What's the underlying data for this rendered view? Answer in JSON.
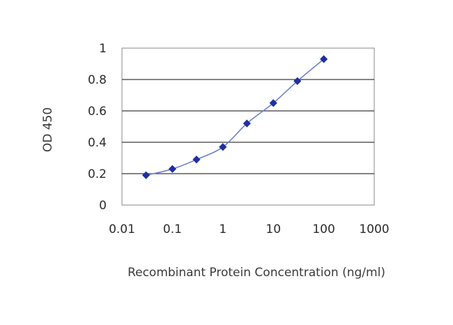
{
  "chart_data": {
    "type": "line",
    "xscale": "log",
    "xlabel": "Recombinant Protein Concentration (ng/ml)",
    "ylabel": "OD 450",
    "xlim": [
      0.01,
      1000
    ],
    "ylim": [
      0,
      1
    ],
    "x_ticks": [
      0.01,
      0.1,
      1,
      10,
      100,
      1000
    ],
    "x_tick_labels": [
      "0.01",
      "0.1",
      "1",
      "10",
      "100",
      "1000"
    ],
    "y_ticks": [
      0,
      0.2,
      0.4,
      0.6,
      0.8,
      1
    ],
    "y_tick_labels": [
      "0",
      "0.2",
      "0.4",
      "0.6",
      "0.8",
      "1"
    ],
    "grid": "horizontal",
    "series": [
      {
        "x": [
          0.03,
          0.1,
          0.3,
          1,
          3,
          10,
          30,
          100
        ],
        "y": [
          0.19,
          0.23,
          0.29,
          0.37,
          0.52,
          0.65,
          0.79,
          0.93
        ]
      }
    ],
    "colors": {
      "line": "#6f7fcf",
      "marker": "#1f2fa0",
      "grid": "#3a3a3a",
      "frame": "#8a8a8a",
      "background": "#ffffff"
    }
  }
}
